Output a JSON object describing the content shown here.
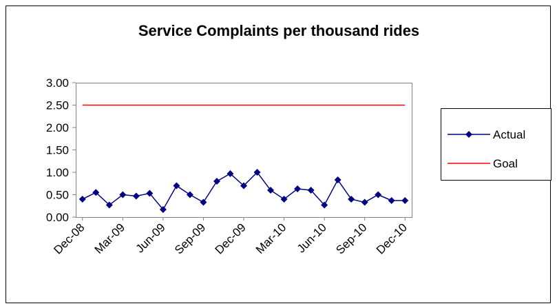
{
  "chart_data": {
    "type": "line",
    "title": "Service Complaints per thousand rides",
    "categories": [
      "Dec-08",
      null,
      null,
      "Mar-09",
      null,
      null,
      "Jun-09",
      null,
      null,
      "Sep-09",
      null,
      null,
      "Dec-09",
      null,
      null,
      "Mar-10",
      null,
      null,
      "Jun-10",
      null,
      null,
      "Sep-10",
      null,
      null,
      "Dec-10"
    ],
    "series": [
      {
        "name": "Actual",
        "color": "#000080",
        "marker": "diamond",
        "values": [
          0.4,
          0.55,
          0.27,
          0.5,
          0.47,
          0.53,
          0.17,
          0.7,
          0.5,
          0.33,
          0.8,
          0.97,
          0.7,
          1.0,
          0.6,
          0.4,
          0.63,
          0.6,
          0.27,
          0.83,
          0.4,
          0.33,
          0.5,
          0.37,
          0.37
        ]
      },
      {
        "name": "Goal",
        "color": "#ff0000",
        "values": [
          2.5,
          2.5,
          2.5,
          2.5,
          2.5,
          2.5,
          2.5,
          2.5,
          2.5,
          2.5,
          2.5,
          2.5,
          2.5,
          2.5,
          2.5,
          2.5,
          2.5,
          2.5,
          2.5,
          2.5,
          2.5,
          2.5,
          2.5,
          2.5,
          2.5
        ]
      }
    ],
    "ylim": [
      0,
      3
    ],
    "yticks": [
      {
        "value": 0,
        "label": "0.00"
      },
      {
        "value": 0.5,
        "label": "0.50"
      },
      {
        "value": 1,
        "label": "1.00"
      },
      {
        "value": 1.5,
        "label": "1.50"
      },
      {
        "value": 2,
        "label": "2.00"
      },
      {
        "value": 2.5,
        "label": "2.50"
      },
      {
        "value": 3,
        "label": "3.00"
      }
    ],
    "grid": false,
    "legend": "right"
  }
}
